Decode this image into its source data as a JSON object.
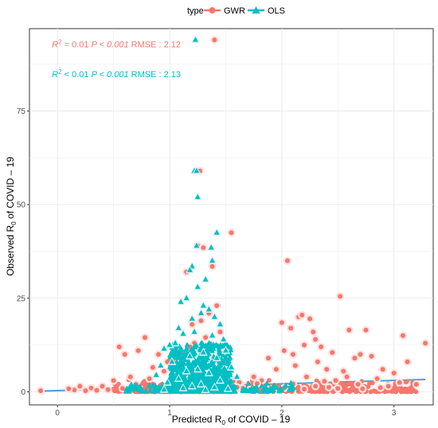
{
  "chart_data": {
    "type": "scatter",
    "title": "",
    "xlabel": "Predicted R0 of COVID-19",
    "ylabel": "Observed R0 of COVID-19",
    "xlabel_parts": {
      "pre": "Predicted R",
      "sub": "0",
      "post": " of COVID – 19"
    },
    "ylabel_parts": {
      "pre": "Observed R",
      "sub": "0",
      "post": " of COVID – 19"
    },
    "xlim": [
      -0.25,
      3.35
    ],
    "ylim": [
      -3.5,
      97
    ],
    "xticks": [
      0,
      1,
      2,
      3
    ],
    "yticks": [
      0,
      25,
      50,
      75
    ],
    "grid": true,
    "legend": {
      "position": "top",
      "title": "type",
      "entries": [
        {
          "name": "GWR",
          "color": "#F8766D",
          "marker": "circle"
        },
        {
          "name": "OLS",
          "color": "#00BFC4",
          "marker": "triangle"
        }
      ]
    },
    "annotations": [
      {
        "series": "GWR",
        "r2_prefix": "R",
        "r2_sup": "2",
        "r2_rel": " = 0.01",
        "p_text": "P < 0.001",
        "rmse_text": "RMSE : 2.12",
        "x": -0.05,
        "y": 92
      },
      {
        "series": "OLS",
        "r2_prefix": "R",
        "r2_sup": "2",
        "r2_rel": " < 0.01",
        "p_text": "P < 0.001",
        "rmse_text": "RMSE : 2.13",
        "x": -0.05,
        "y": 84
      }
    ],
    "series": [
      {
        "name": "GWR",
        "color": "#F8766D",
        "marker": "circle",
        "fit_line": {
          "color": "#4A9FD8",
          "x": [
            -0.15,
            3.28
          ],
          "y": [
            0.2,
            3.3
          ]
        },
        "points": [
          [
            1.4,
            94
          ],
          [
            1.27,
            59
          ],
          [
            1.25,
            39
          ],
          [
            1.55,
            42.5
          ],
          [
            1.3,
            38.5
          ],
          [
            1.15,
            32
          ],
          [
            1.38,
            33.5
          ],
          [
            1.42,
            23
          ],
          [
            1.35,
            21
          ],
          [
            1.28,
            19
          ],
          [
            1.2,
            18
          ],
          [
            1.45,
            16
          ],
          [
            1.32,
            14.5
          ],
          [
            1.22,
            13
          ],
          [
            1.18,
            12
          ],
          [
            1.1,
            10.5
          ],
          [
            1.05,
            9
          ],
          [
            0.98,
            8
          ],
          [
            0.9,
            10
          ],
          [
            0.85,
            6.5
          ],
          [
            0.78,
            14.5
          ],
          [
            0.72,
            11
          ],
          [
            0.6,
            10
          ],
          [
            0.55,
            12
          ],
          [
            0.65,
            4
          ],
          [
            0.5,
            3
          ],
          [
            0.4,
            1.5
          ],
          [
            0.3,
            1
          ],
          [
            0.2,
            1.5
          ],
          [
            0.15,
            0.5
          ],
          [
            0.1,
            0.8
          ],
          [
            -0.15,
            0.3
          ],
          [
            0.35,
            0.4
          ],
          [
            0.45,
            0.6
          ],
          [
            0.7,
            2
          ],
          [
            0.82,
            3.5
          ],
          [
            0.95,
            5.5
          ],
          [
            1.02,
            6
          ],
          [
            1.12,
            7.5
          ],
          [
            1.48,
            8
          ],
          [
            1.52,
            5
          ],
          [
            1.58,
            3
          ],
          [
            1.62,
            2.5
          ],
          [
            1.68,
            1.5
          ],
          [
            1.75,
            4
          ],
          [
            1.82,
            3
          ],
          [
            1.88,
            9
          ],
          [
            1.95,
            6
          ],
          [
            2.0,
            18.5
          ],
          [
            2.02,
            11
          ],
          [
            2.05,
            35
          ],
          [
            2.08,
            17
          ],
          [
            2.1,
            10
          ],
          [
            2.12,
            7
          ],
          [
            2.15,
            20
          ],
          [
            2.18,
            20.5
          ],
          [
            2.2,
            12.5
          ],
          [
            2.22,
            4
          ],
          [
            2.25,
            19.5
          ],
          [
            2.28,
            16
          ],
          [
            2.3,
            14
          ],
          [
            2.32,
            8
          ],
          [
            2.35,
            12
          ],
          [
            2.4,
            6
          ],
          [
            2.45,
            10.5
          ],
          [
            2.48,
            3
          ],
          [
            2.52,
            25.5
          ],
          [
            2.55,
            5.5
          ],
          [
            2.58,
            4
          ],
          [
            2.6,
            16.5
          ],
          [
            2.65,
            9
          ],
          [
            2.7,
            10
          ],
          [
            2.75,
            16.5
          ],
          [
            2.8,
            9.5
          ],
          [
            2.85,
            3.5
          ],
          [
            2.9,
            6
          ],
          [
            3.0,
            5
          ],
          [
            3.05,
            2.5
          ],
          [
            3.08,
            15
          ],
          [
            3.12,
            8
          ],
          [
            3.2,
            2
          ],
          [
            3.28,
            13
          ],
          [
            2.95,
            1.5
          ],
          [
            2.68,
            2
          ],
          [
            2.42,
            1.2
          ],
          [
            2.38,
            2.8
          ],
          [
            2.02,
            1
          ],
          [
            1.92,
            0.8
          ],
          [
            1.72,
            0.6
          ],
          [
            1.65,
            0.9
          ],
          [
            2.2,
            0.7
          ],
          [
            2.5,
            0.9
          ],
          [
            2.72,
            0.8
          ],
          [
            2.88,
            1.1
          ],
          [
            1.85,
            1.6
          ],
          [
            1.78,
            2.2
          ],
          [
            2.1,
            2.1
          ],
          [
            2.3,
            1.5
          ],
          [
            1.6,
            1.2
          ],
          [
            0.25,
            0.3
          ],
          [
            0.58,
            0.9
          ]
        ]
      },
      {
        "name": "OLS",
        "color": "#00BFC4",
        "marker": "triangle",
        "points": [
          [
            1.23,
            94
          ],
          [
            1.22,
            59
          ],
          [
            1.24,
            59
          ],
          [
            1.25,
            52
          ],
          [
            1.24,
            39
          ],
          [
            1.37,
            38.5
          ],
          [
            1.42,
            42.5
          ],
          [
            1.2,
            33.5
          ],
          [
            1.18,
            32.5
          ],
          [
            1.38,
            35
          ],
          [
            1.32,
            30
          ],
          [
            1.25,
            28
          ],
          [
            1.15,
            25
          ],
          [
            1.1,
            24
          ],
          [
            1.3,
            23
          ],
          [
            1.35,
            22
          ],
          [
            1.28,
            21
          ],
          [
            1.4,
            20
          ],
          [
            1.2,
            19.5
          ],
          [
            1.45,
            18
          ],
          [
            1.08,
            17
          ],
          [
            1.12,
            15.5
          ],
          [
            1.22,
            16
          ],
          [
            1.38,
            15
          ],
          [
            1.48,
            14
          ],
          [
            1.05,
            13
          ],
          [
            1.0,
            12.5
          ],
          [
            0.95,
            11.5
          ],
          [
            1.5,
            11
          ],
          [
            1.3,
            10.5
          ],
          [
            1.18,
            9.5
          ],
          [
            1.42,
            9
          ],
          [
            1.02,
            8
          ],
          [
            0.92,
            7
          ],
          [
            1.55,
            6.5
          ],
          [
            1.25,
            6
          ],
          [
            1.15,
            5.5
          ],
          [
            1.35,
            5
          ],
          [
            0.88,
            4.5
          ],
          [
            1.6,
            4
          ],
          [
            1.08,
            3.5
          ],
          [
            1.45,
            3
          ],
          [
            0.98,
            2.5
          ],
          [
            1.28,
            2
          ],
          [
            1.2,
            1.5
          ],
          [
            1.4,
            1.2
          ],
          [
            1.12,
            1
          ],
          [
            1.52,
            0.8
          ],
          [
            0.95,
            0.6
          ],
          [
            1.32,
            0.5
          ]
        ]
      }
    ]
  }
}
